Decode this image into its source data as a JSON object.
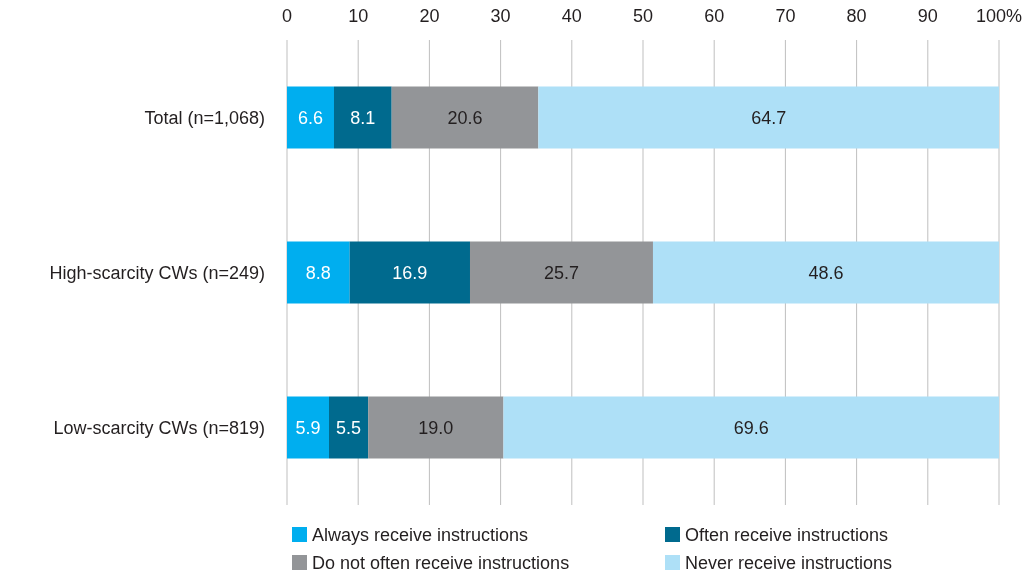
{
  "chart_data": {
    "type": "bar",
    "orientation": "horizontal",
    "stacked": true,
    "categories": [
      "Total (n=1,068)",
      "High-scarcity CWs (n=249)",
      "Low-scarcity CWs (n=819)"
    ],
    "series": [
      {
        "name": "Always receive instructions",
        "color": "#00aeef",
        "values": [
          6.6,
          8.8,
          5.9
        ],
        "value_labels": [
          "6.6",
          "8.8",
          "5.9"
        ]
      },
      {
        "name": "Often receive instructions",
        "color": "#006a8e",
        "values": [
          8.1,
          16.9,
          5.5
        ],
        "value_labels": [
          "8.1",
          "16.9",
          "5.5"
        ]
      },
      {
        "name": "Do not often receive instructions",
        "color": "#939598",
        "values": [
          20.6,
          25.7,
          19.0
        ],
        "value_labels": [
          "20.6",
          "25.7",
          "19.0"
        ]
      },
      {
        "name": "Never receive instructions",
        "color": "#aee0f7",
        "values": [
          64.7,
          48.6,
          69.6
        ],
        "value_labels": [
          "64.7",
          "48.6",
          "69.6"
        ]
      }
    ],
    "xlim": [
      0,
      100
    ],
    "xticks": [
      0,
      10,
      20,
      30,
      40,
      50,
      60,
      70,
      80,
      90,
      {
        "value": 100,
        "label": "100%"
      }
    ],
    "grid": "x",
    "legend": "bottom"
  }
}
